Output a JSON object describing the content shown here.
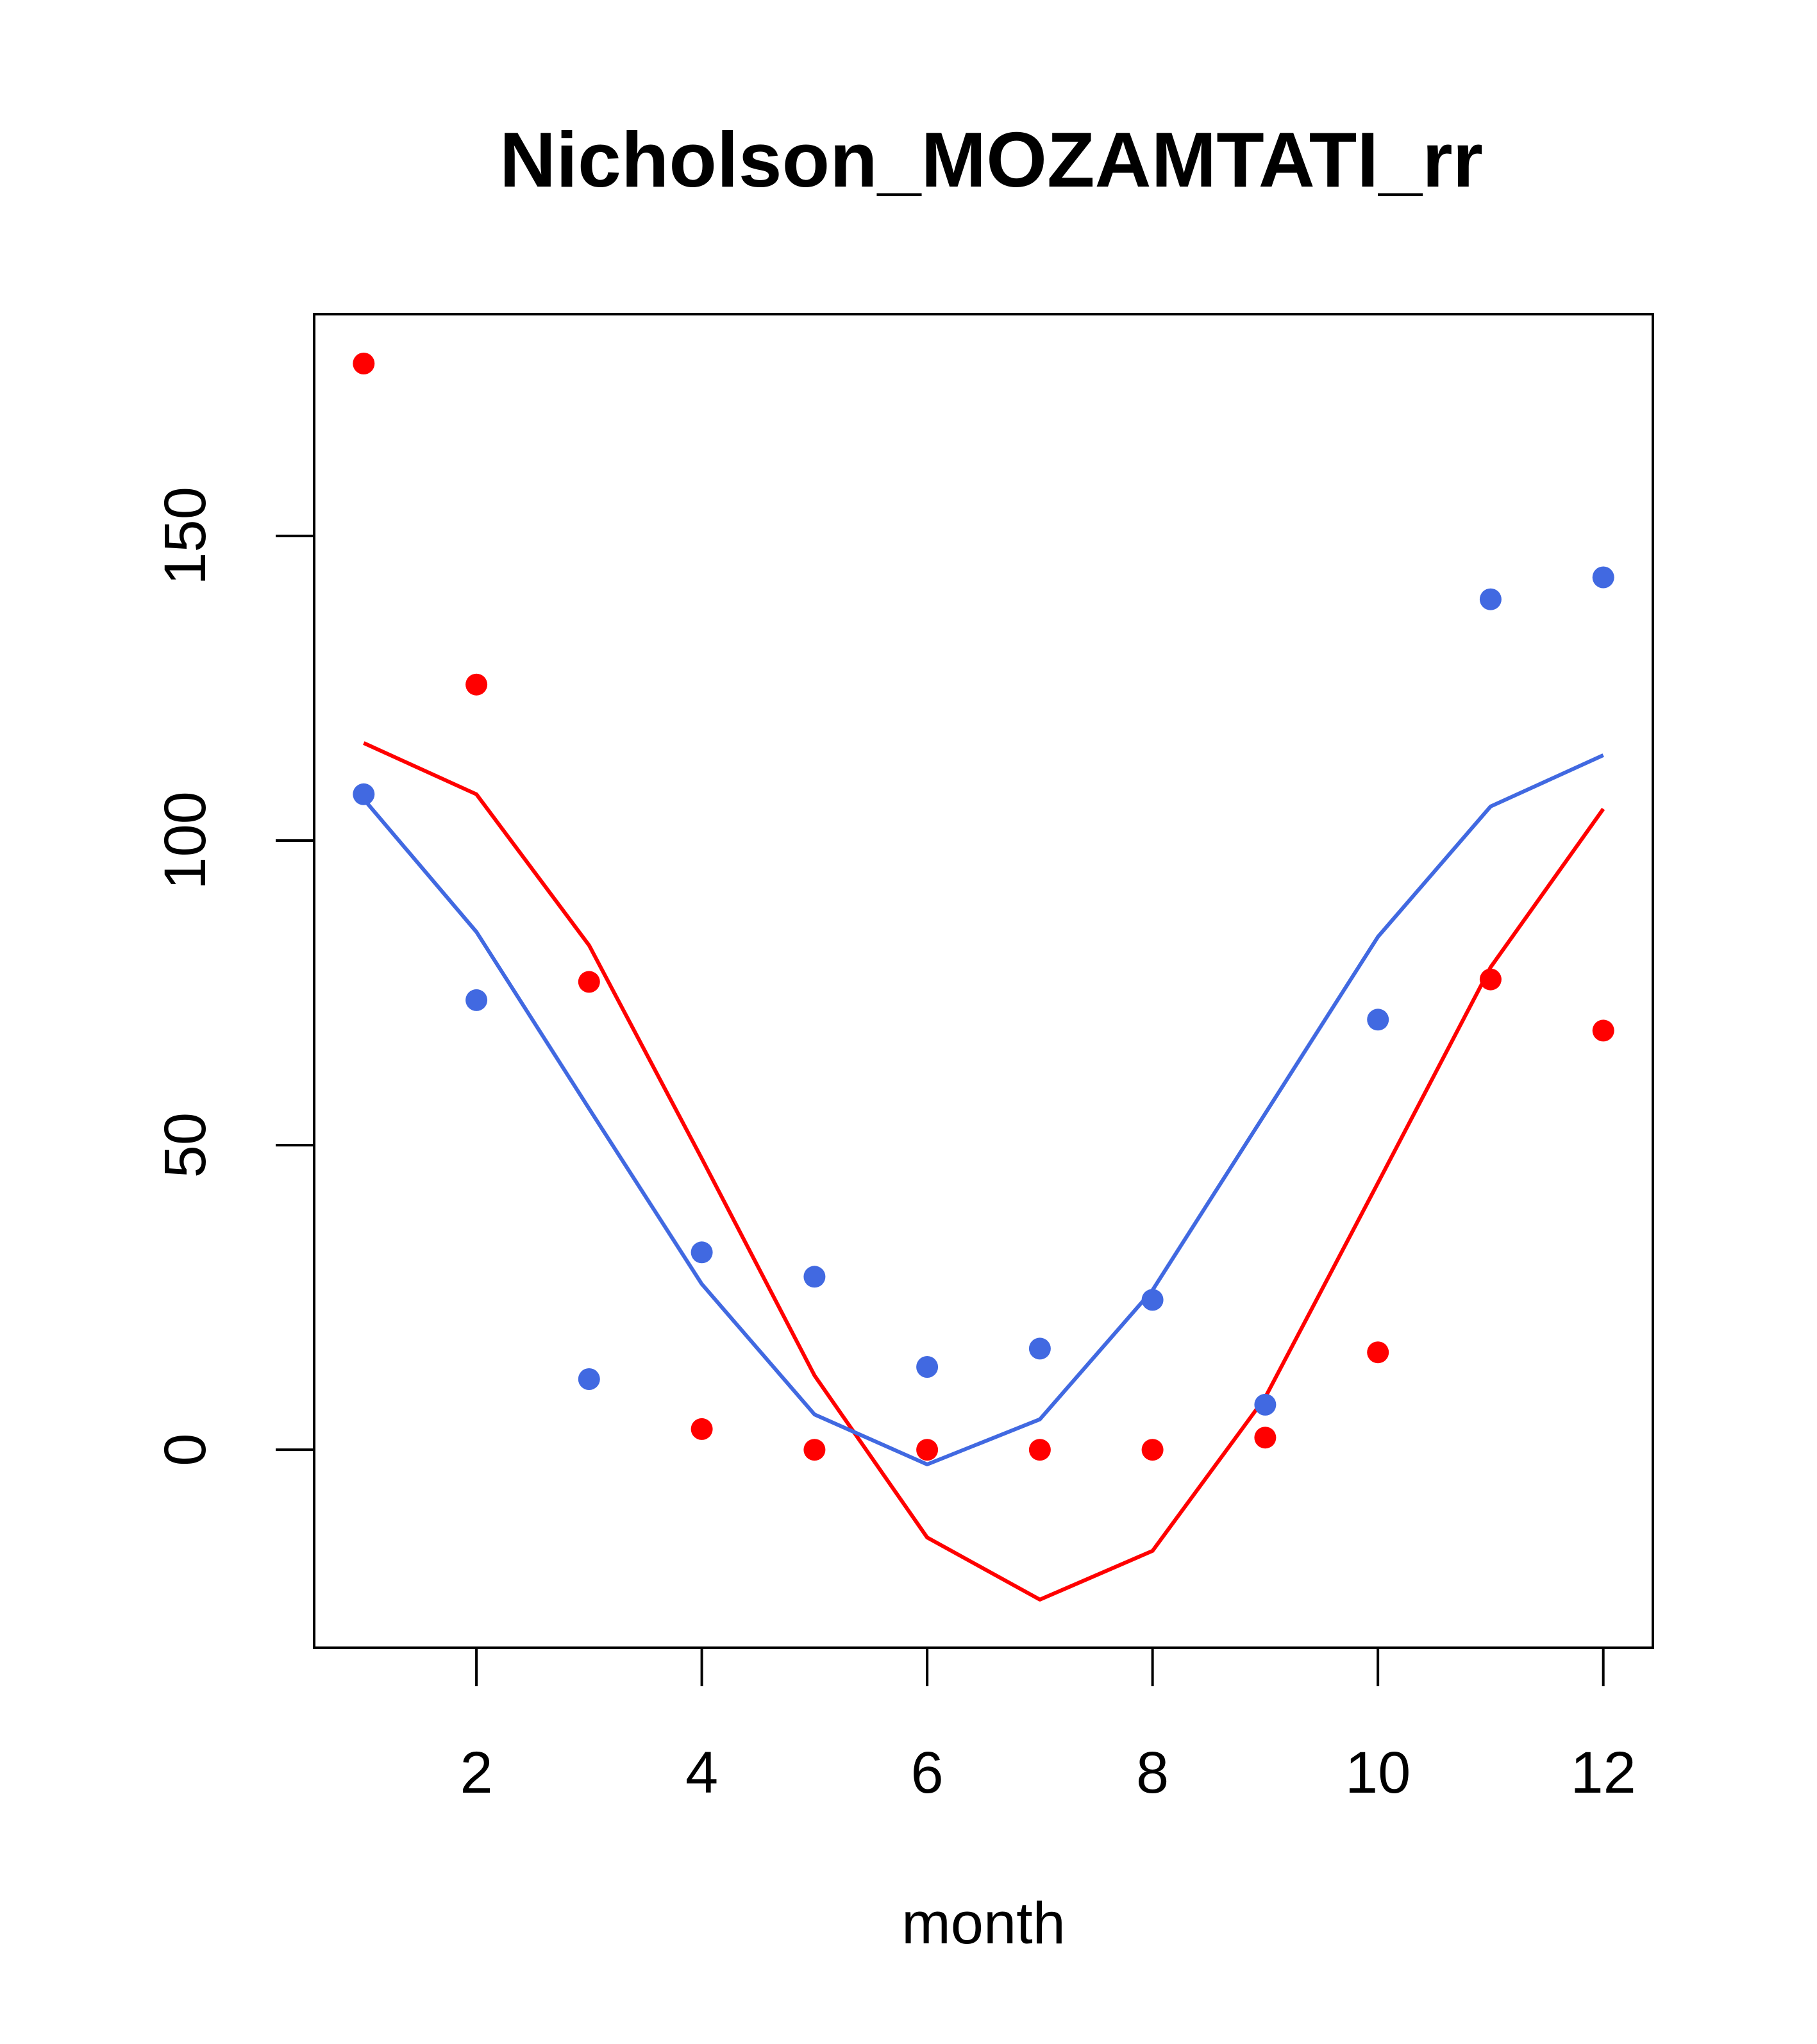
{
  "chart_data": {
    "type": "scatter",
    "title": "Nicholson_MOZAMTATI_rr",
    "xlabel": "month",
    "ylabel": "",
    "xlim": [
      0.56,
      12.44
    ],
    "ylim": [
      -32.5,
      186.4
    ],
    "x_ticks": [
      2,
      4,
      6,
      8,
      10,
      12
    ],
    "y_ticks": [
      0,
      50,
      100,
      150
    ],
    "series": [
      {
        "name": "red-points",
        "kind": "points",
        "color": "#ff0000",
        "x": [
          1,
          2,
          3,
          4,
          5,
          6,
          7,
          8,
          9,
          10,
          11,
          12
        ],
        "y": [
          178.3,
          125.6,
          76.8,
          3.4,
          0.0,
          0.0,
          0.0,
          0.0,
          2.0,
          16.0,
          77.2,
          68.8
        ]
      },
      {
        "name": "blue-points",
        "kind": "points",
        "color": "#4169e1",
        "x": [
          1,
          2,
          3,
          4,
          5,
          6,
          7,
          8,
          9,
          10,
          11,
          12
        ],
        "y": [
          107.6,
          73.8,
          11.6,
          32.4,
          28.4,
          13.6,
          16.6,
          24.6,
          7.4,
          70.6,
          139.6,
          143.2
        ]
      },
      {
        "name": "red-line",
        "kind": "line",
        "color": "#ff0000",
        "x": [
          1,
          2,
          3,
          4,
          5,
          6,
          7,
          8,
          9,
          10,
          11,
          12
        ],
        "y": [
          116.0,
          107.6,
          82.8,
          47.8,
          12.2,
          -14.4,
          -24.6,
          -16.6,
          8.6,
          43.8,
          79.2,
          105.2
        ]
      },
      {
        "name": "blue-line",
        "kind": "line",
        "color": "#4169e1",
        "x": [
          1,
          2,
          3,
          4,
          5,
          6,
          7,
          8,
          9,
          10,
          11,
          12
        ],
        "y": [
          106.8,
          85.0,
          56.0,
          27.2,
          5.8,
          -2.4,
          5.0,
          26.2,
          55.2,
          84.2,
          105.6,
          114.0
        ]
      }
    ]
  }
}
